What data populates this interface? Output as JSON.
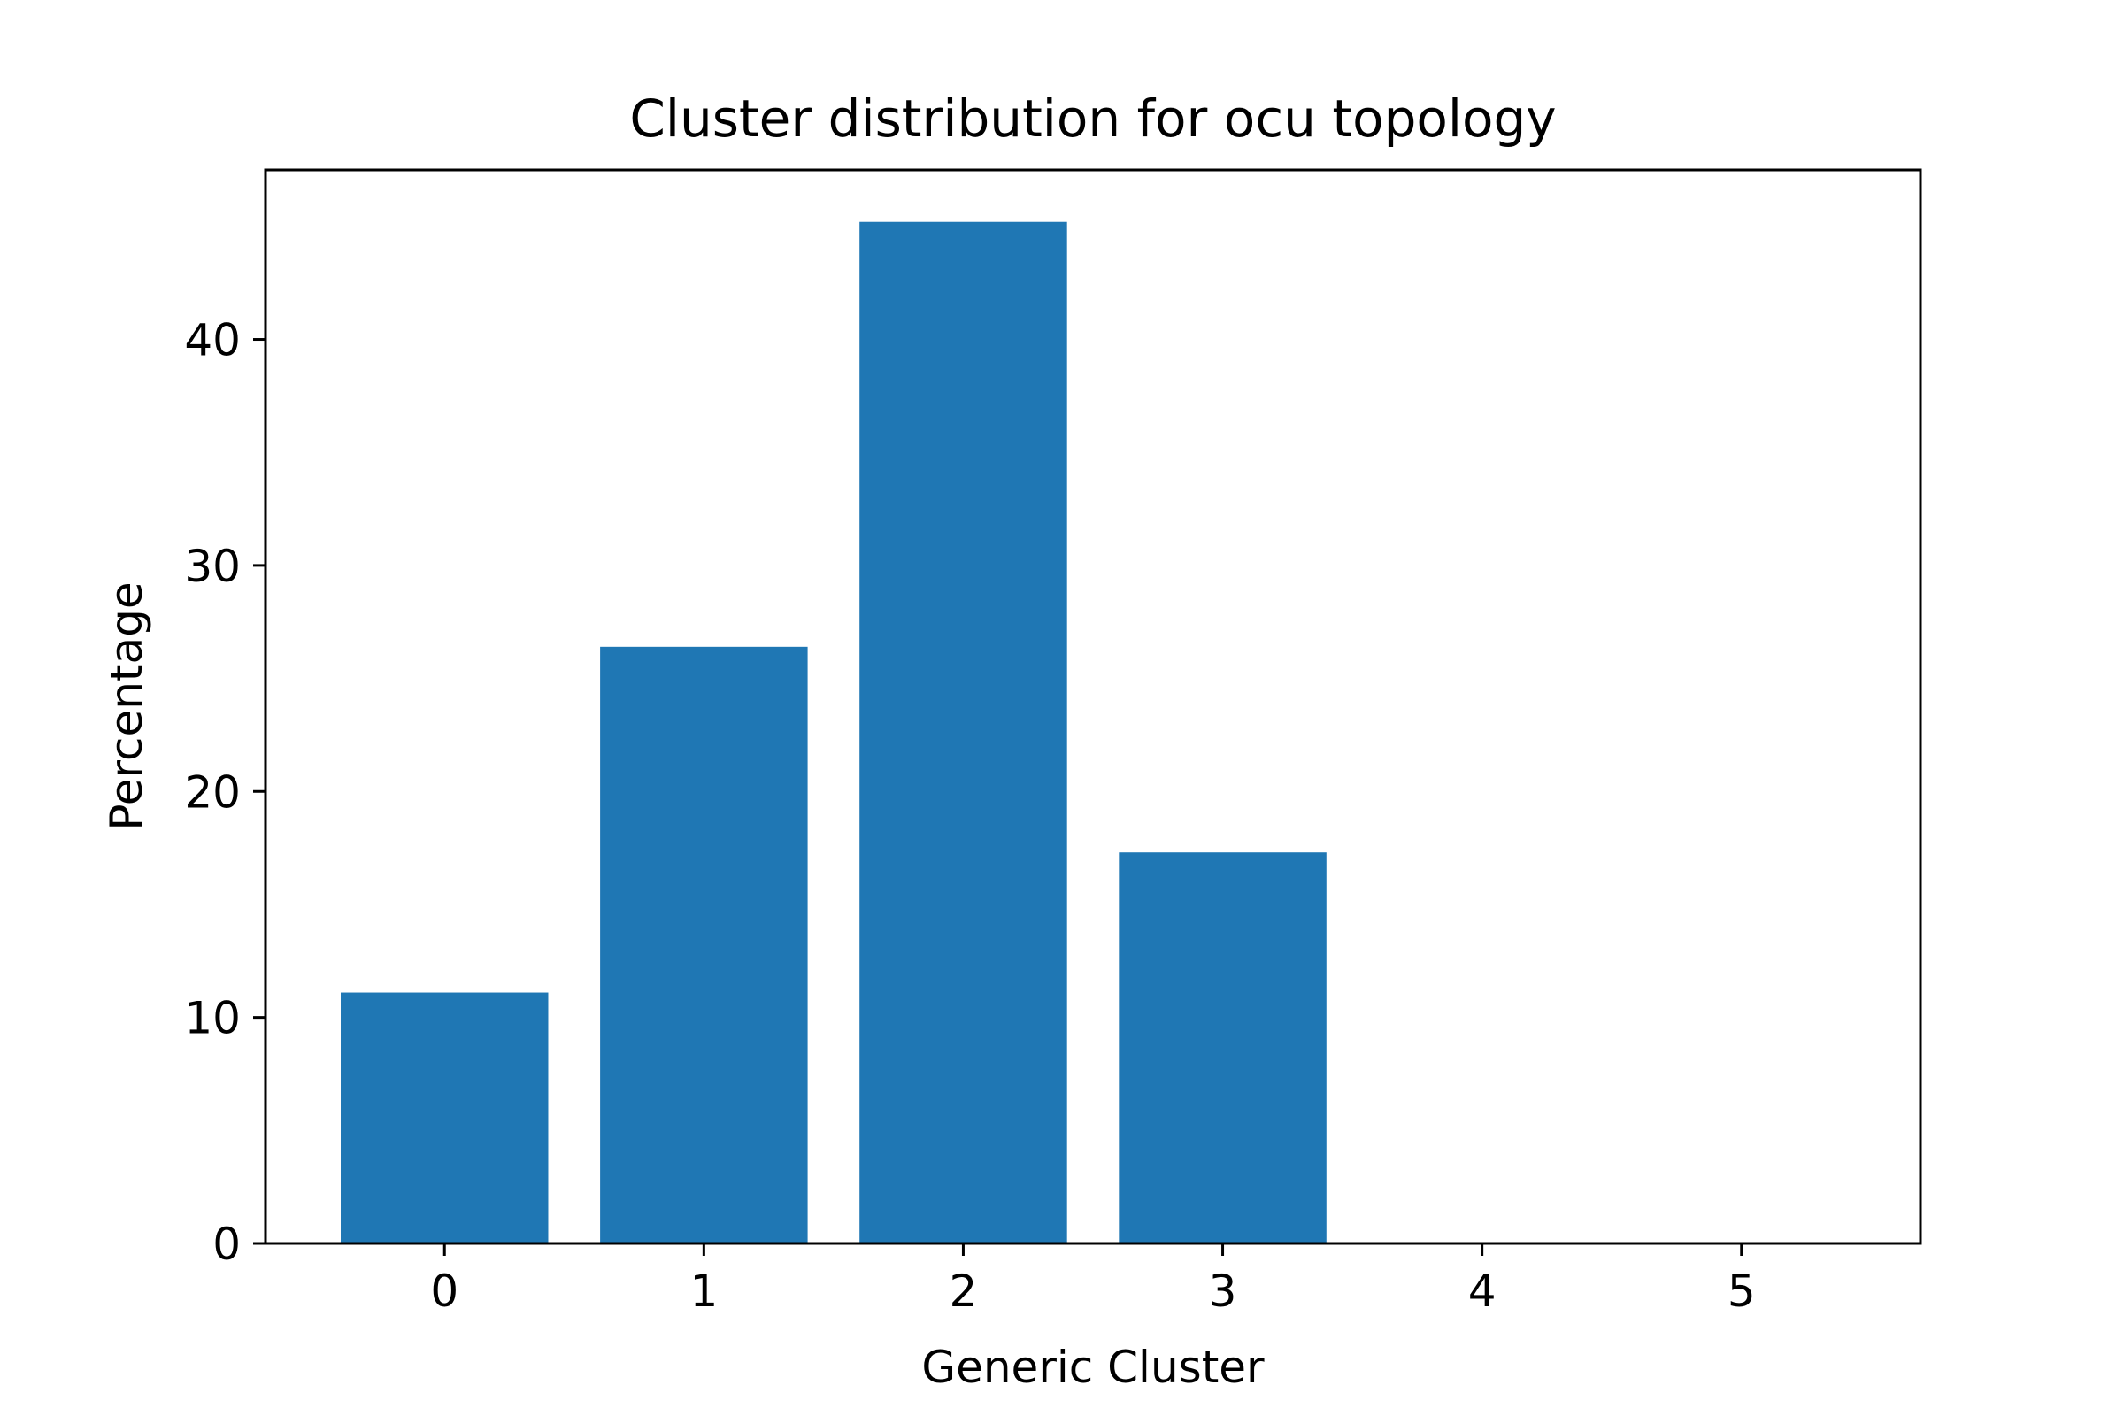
{
  "chart_data": {
    "type": "bar",
    "title": "Cluster distribution for ocu topology",
    "xlabel": "Generic Cluster",
    "ylabel": "Percentage",
    "categories": [
      "0",
      "1",
      "2",
      "3",
      "4",
      "5"
    ],
    "x": [
      0,
      1,
      2,
      3,
      4,
      5
    ],
    "values": [
      11.1,
      26.4,
      45.2,
      17.3,
      0,
      0
    ],
    "xlim": [
      -0.69,
      5.69
    ],
    "ylim": [
      0,
      47.5
    ],
    "yticks": [
      0,
      10,
      20,
      30,
      40
    ],
    "ytick_labels": [
      "0",
      "10",
      "20",
      "30",
      "40"
    ],
    "bar_width": 0.8,
    "bar_color": "#1f77b4",
    "grid": false,
    "legend": "none"
  }
}
